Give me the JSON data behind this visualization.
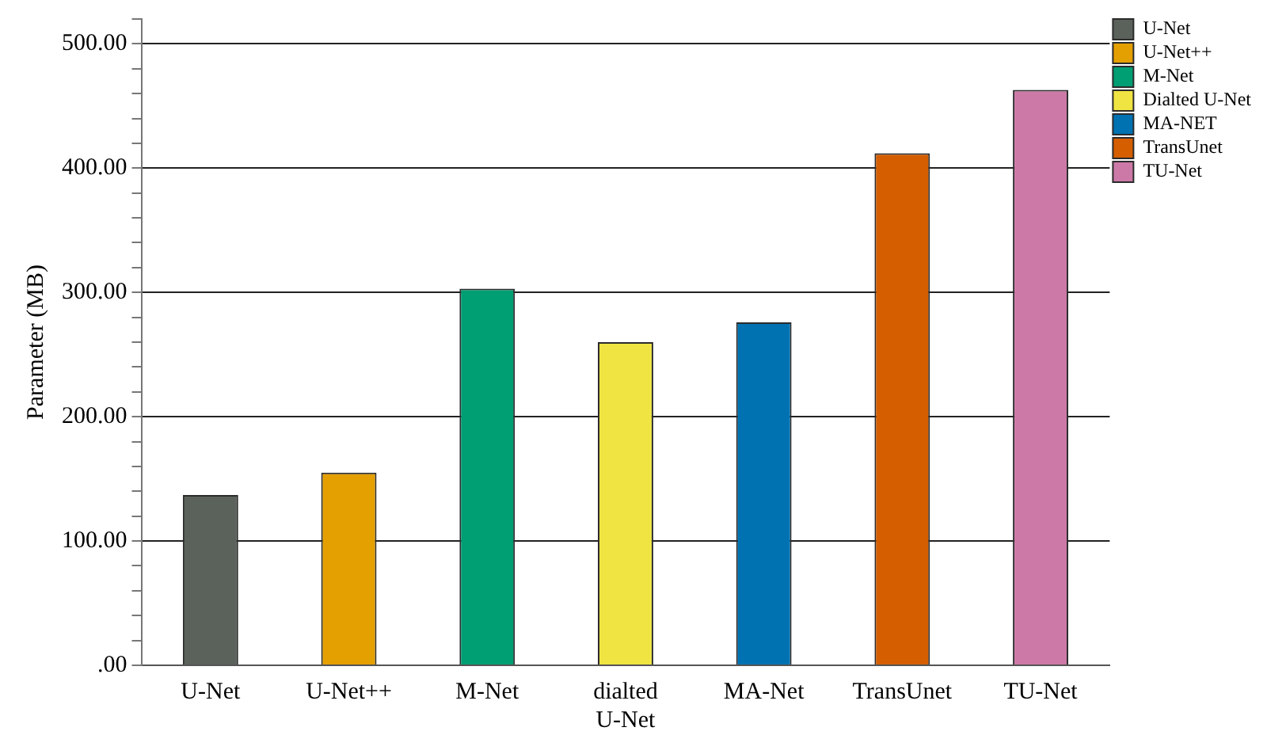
{
  "chart_data": {
    "type": "bar",
    "ylabel": "Parameter (MB)",
    "categories": [
      "U-Net",
      "U-Net++",
      "M-Net",
      "dialted U-Net",
      "MA-Net",
      "TransUnet",
      "TU-Net"
    ],
    "series": [
      {
        "name": "U-Net",
        "color": "#5b625c",
        "values": [
          137,
          null,
          null,
          null,
          null,
          null,
          null
        ]
      },
      {
        "name": "U-Net++",
        "color": "#e49f00",
        "values": [
          null,
          155,
          null,
          null,
          null,
          null,
          null
        ]
      },
      {
        "name": "M-Net",
        "color": "#009e73",
        "values": [
          null,
          null,
          303,
          null,
          null,
          null,
          null
        ]
      },
      {
        "name": "Dialted U-Net",
        "color": "#f0e442",
        "values": [
          null,
          null,
          null,
          260,
          null,
          null,
          null
        ]
      },
      {
        "name": "MA-NET",
        "color": "#0072b2",
        "values": [
          null,
          null,
          null,
          null,
          276,
          null,
          null
        ]
      },
      {
        "name": "TransUnet",
        "color": "#d55e00",
        "values": [
          null,
          null,
          null,
          null,
          null,
          412,
          null
        ]
      },
      {
        "name": "TU-Net",
        "color": "#cc79a7",
        "values": [
          null,
          null,
          null,
          null,
          null,
          null,
          463
        ]
      }
    ],
    "ylim": [
      0,
      520
    ],
    "yticks": [
      {
        "value": 0,
        "label": ".00"
      },
      {
        "value": 20,
        "label": null
      },
      {
        "value": 40,
        "label": null
      },
      {
        "value": 60,
        "label": null
      },
      {
        "value": 80,
        "label": null
      },
      {
        "value": 100,
        "label": "100.00"
      },
      {
        "value": 120,
        "label": null
      },
      {
        "value": 140,
        "label": null
      },
      {
        "value": 160,
        "label": null
      },
      {
        "value": 180,
        "label": null
      },
      {
        "value": 200,
        "label": "200.00"
      },
      {
        "value": 220,
        "label": null
      },
      {
        "value": 240,
        "label": null
      },
      {
        "value": 260,
        "label": null
      },
      {
        "value": 280,
        "label": null
      },
      {
        "value": 300,
        "label": "300.00"
      },
      {
        "value": 320,
        "label": null
      },
      {
        "value": 340,
        "label": null
      },
      {
        "value": 360,
        "label": null
      },
      {
        "value": 380,
        "label": null
      },
      {
        "value": 400,
        "label": "400.00"
      },
      {
        "value": 420,
        "label": null
      },
      {
        "value": 440,
        "label": null
      },
      {
        "value": 460,
        "label": null
      },
      {
        "value": 480,
        "label": null
      },
      {
        "value": 500,
        "label": "500.00"
      },
      {
        "value": 520,
        "label": null
      }
    ],
    "grid": "y",
    "legend": "top right"
  }
}
